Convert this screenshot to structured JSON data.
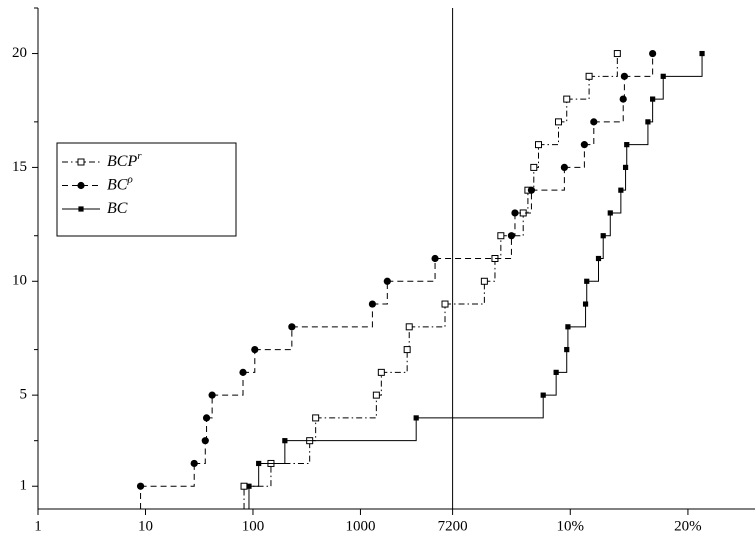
{
  "chart_data": {
    "type": "step",
    "xscale": "log",
    "xlim": [
      1,
      7200
    ],
    "xticks": [
      1,
      10,
      100,
      1000,
      7200
    ],
    "x2lim": [
      0,
      25.7
    ],
    "x2ticks": [
      {
        "value": 10,
        "label": "10%"
      },
      {
        "value": 20,
        "label": "20%"
      }
    ],
    "ylim": [
      0,
      22
    ],
    "yticks": [
      1,
      5,
      10,
      15,
      20
    ],
    "yminorticks": [
      3,
      7,
      12,
      17,
      22
    ],
    "legend": "left",
    "series": [
      {
        "name": "BCP",
        "sup": "r",
        "marker": "open-square",
        "dash": "dashdot",
        "color": "#000",
        "values": [
          1,
          2,
          3,
          4,
          5,
          6,
          7,
          8,
          9,
          10,
          11,
          12,
          13,
          14,
          15,
          16,
          17,
          18,
          19,
          20
        ],
        "x": [
          82.6,
          147,
          337,
          383,
          1406,
          1564,
          2720,
          2843,
          6120,
          null,
          null,
          null,
          null,
          null,
          null,
          null,
          null,
          null,
          null,
          null
        ],
        "x2": [
          null,
          null,
          null,
          null,
          null,
          null,
          null,
          null,
          null,
          2.7,
          3.6,
          4.1,
          6.0,
          6.4,
          6.9,
          7.3,
          9.0,
          9.7,
          11.6,
          14.0
        ]
      },
      {
        "name": "BC",
        "sup": "ρ",
        "marker": "circle",
        "dash": "dashed",
        "color": "#000",
        "values": [
          1,
          2,
          3,
          4,
          5,
          6,
          7,
          8,
          9,
          10,
          11,
          12,
          13,
          14,
          15,
          16,
          17,
          18,
          19,
          20
        ],
        "x": [
          9,
          28.4,
          36,
          37,
          41.7,
          80.8,
          104,
          230,
          1292,
          1778,
          4945,
          null,
          null,
          null,
          null,
          null,
          null,
          null,
          null,
          null
        ],
        "x2": [
          null,
          null,
          null,
          null,
          null,
          null,
          null,
          null,
          null,
          null,
          null,
          5.0,
          5.3,
          6.7,
          9.5,
          11.2,
          12.0,
          14.5,
          14.6,
          17.0
        ]
      },
      {
        "name": "BC",
        "marker": "square",
        "dash": "solid",
        "color": "#000",
        "values": [
          1,
          2,
          3,
          4,
          5,
          6,
          7,
          8,
          9,
          10,
          11,
          12,
          13,
          14,
          15,
          16,
          17,
          18,
          19,
          20
        ],
        "x": [
          91.8,
          113,
          198,
          3300,
          null,
          null,
          null,
          null,
          null,
          null,
          null,
          null,
          null,
          null,
          null,
          null,
          null,
          null,
          null,
          null
        ],
        "x2": [
          null,
          null,
          null,
          null,
          7.7,
          8.8,
          9.7,
          9.8,
          11.3,
          11.4,
          12.4,
          12.8,
          13.4,
          14.3,
          14.7,
          14.8,
          16.6,
          17.0,
          17.9,
          21.2
        ]
      }
    ]
  }
}
